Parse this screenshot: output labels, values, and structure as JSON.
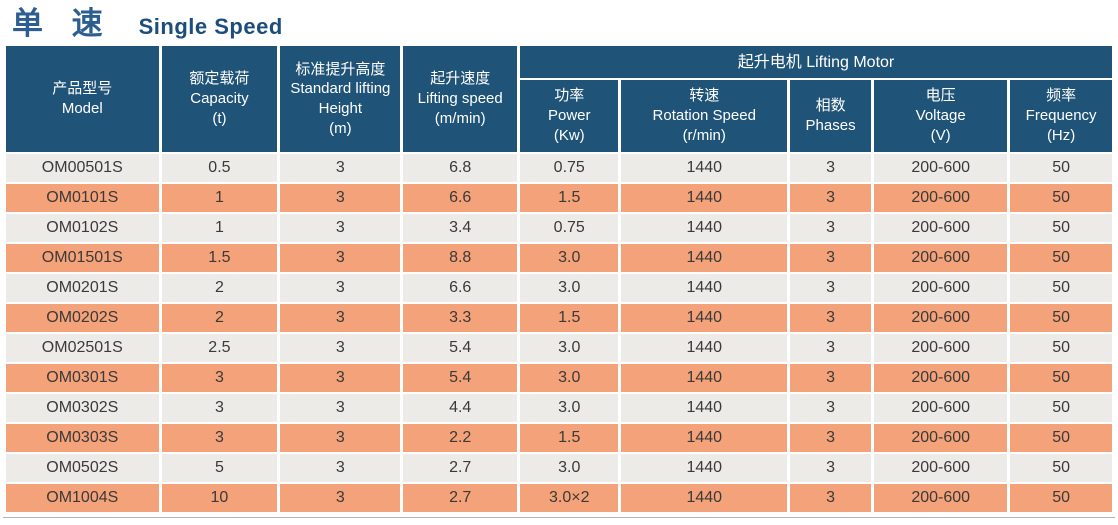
{
  "title": {
    "zh": "单 速",
    "en": "Single Speed"
  },
  "colors": {
    "header_bg": "#1f5377",
    "row_alt_gray": "#ecebe7",
    "row_alt_salmon": "#f4a279",
    "title_zh": "#2d5e92",
    "title_en": "#1d4d7a",
    "header_text": "#ffffff",
    "body_text": "#3a3a3a"
  },
  "table": {
    "group_header": "起升电机 Lifting Motor",
    "columns": [
      {
        "name": "model",
        "lines": [
          "产品型号",
          "Model"
        ]
      },
      {
        "name": "capacity",
        "lines": [
          "额定载荷",
          "Capacity",
          "(t)"
        ]
      },
      {
        "name": "standard-lifting-height",
        "lines": [
          "标准提升高度",
          "Standard lifting",
          "Height",
          "(m)"
        ]
      },
      {
        "name": "lifting-speed",
        "lines": [
          "起升速度",
          "Lifting speed",
          "(m/min)"
        ]
      },
      {
        "name": "power",
        "lines": [
          "功率",
          "Power",
          "(Kw)"
        ]
      },
      {
        "name": "rotation-speed",
        "lines": [
          "转速",
          "Rotation Speed",
          "(r/min)"
        ]
      },
      {
        "name": "phases",
        "lines": [
          "相数",
          "Phases"
        ]
      },
      {
        "name": "voltage",
        "lines": [
          "电压",
          "Voltage",
          "(V)"
        ]
      },
      {
        "name": "frequency",
        "lines": [
          "频率",
          "Frequency",
          "(Hz)"
        ]
      }
    ],
    "rows": [
      [
        "OM00501S",
        "0.5",
        "3",
        "6.8",
        "0.75",
        "1440",
        "3",
        "200-600",
        "50"
      ],
      [
        "OM0101S",
        "1",
        "3",
        "6.6",
        "1.5",
        "1440",
        "3",
        "200-600",
        "50"
      ],
      [
        "OM0102S",
        "1",
        "3",
        "3.4",
        "0.75",
        "1440",
        "3",
        "200-600",
        "50"
      ],
      [
        "OM01501S",
        "1.5",
        "3",
        "8.8",
        "3.0",
        "1440",
        "3",
        "200-600",
        "50"
      ],
      [
        "OM0201S",
        "2",
        "3",
        "6.6",
        "3.0",
        "1440",
        "3",
        "200-600",
        "50"
      ],
      [
        "OM0202S",
        "2",
        "3",
        "3.3",
        "1.5",
        "1440",
        "3",
        "200-600",
        "50"
      ],
      [
        "OM02501S",
        "2.5",
        "3",
        "5.4",
        "3.0",
        "1440",
        "3",
        "200-600",
        "50"
      ],
      [
        "OM0301S",
        "3",
        "3",
        "5.4",
        "3.0",
        "1440",
        "3",
        "200-600",
        "50"
      ],
      [
        "OM0302S",
        "3",
        "3",
        "4.4",
        "3.0",
        "1440",
        "3",
        "200-600",
        "50"
      ],
      [
        "OM0303S",
        "3",
        "3",
        "2.2",
        "1.5",
        "1440",
        "3",
        "200-600",
        "50"
      ],
      [
        "OM0502S",
        "5",
        "3",
        "2.7",
        "3.0",
        "1440",
        "3",
        "200-600",
        "50"
      ],
      [
        "OM1004S",
        "10",
        "3",
        "2.7",
        "3.0×2",
        "1440",
        "3",
        "200-600",
        "50"
      ]
    ]
  }
}
